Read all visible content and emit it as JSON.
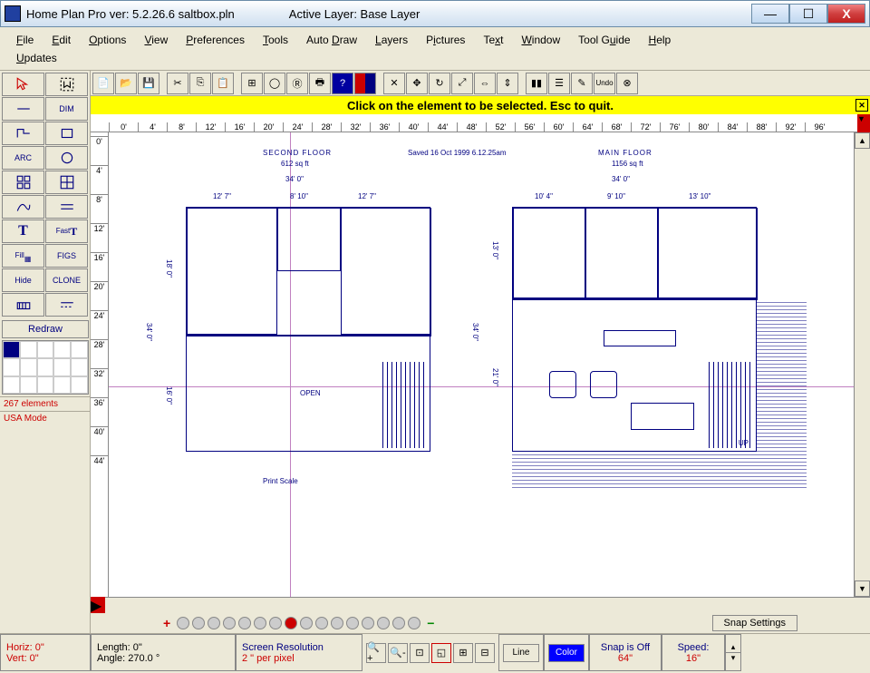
{
  "window": {
    "title": "Home Plan Pro ver: 5.2.26.6   saltbox.pln",
    "active_layer": "Active Layer: Base Layer"
  },
  "menu": {
    "file": "File",
    "edit": "Edit",
    "options": "Options",
    "view": "View",
    "preferences": "Preferences",
    "tools": "Tools",
    "autodraw": "Auto Draw",
    "layers": "Layers",
    "pictures": "Pictures",
    "text": "Text",
    "window": "Window",
    "toolguide": "Tool Guide",
    "help": "Help",
    "updates": "Updates"
  },
  "toolbox": {
    "dim": "DIM",
    "arc": "ARC",
    "fast": "Fast",
    "text_t": "T",
    "fill": "Fill",
    "figs": "FIGS",
    "hide": "Hide",
    "clone": "CLONE",
    "redraw": "Redraw"
  },
  "yellow_bar": {
    "text": "Click on the element to be selected.  Esc to quit."
  },
  "ruler_h": [
    "0'",
    "4'",
    "8'",
    "12'",
    "16'",
    "20'",
    "24'",
    "28'",
    "32'",
    "36'",
    "40'",
    "44'",
    "48'",
    "52'",
    "56'",
    "60'",
    "64'",
    "68'",
    "72'",
    "76'",
    "80'",
    "84'",
    "88'",
    "92'",
    "96'"
  ],
  "ruler_v": [
    "0'",
    "4'",
    "8'",
    "12'",
    "16'",
    "20'",
    "24'",
    "28'",
    "32'",
    "36'",
    "40'",
    "44'"
  ],
  "floor1": {
    "title": "SECOND FLOOR",
    "area": "612 sq ft",
    "width": "34' 0\"",
    "dims": [
      "12' 7\"",
      "8' 10\"",
      "12' 7\""
    ],
    "height": "34' 0\"",
    "h1": "18' 0\"",
    "h2": "16' 0\"",
    "open": "OPEN",
    "printscale": "Print Scale"
  },
  "floor2": {
    "title": "MAIN FLOOR",
    "area": "1156 sq ft",
    "width": "34' 0\"",
    "dims": [
      "10' 4\"",
      "9' 10\"",
      "13' 10\""
    ],
    "height": "34' 0\"",
    "h1": "13' 0\"",
    "h2": "21' 0\"",
    "up": "UP"
  },
  "saved": "Saved 16 Oct 1999  6.12.25am",
  "element_count": "267 elements",
  "mode": "USA Mode",
  "status": {
    "horiz": "Horiz:  0\"",
    "vert": "Vert:  0\"",
    "length": "Length:   0\"",
    "angle": "Angle: 270.0 °",
    "screen_res": "Screen Resolution",
    "per_pixel": "2 \" per pixel",
    "line": "Line",
    "color": "Color",
    "snap": "Snap is Off",
    "snap_val": "64\"",
    "speed": "Speed:",
    "speed_val": "16\"",
    "snap_settings": "Snap Settings"
  }
}
